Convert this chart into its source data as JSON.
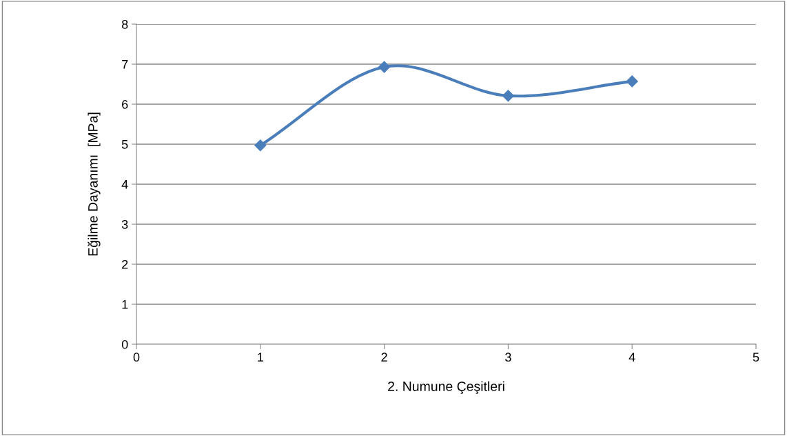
{
  "chart_data": {
    "type": "line",
    "xlabel": "2. Numune Çeşitleri",
    "ylabel": "Eğilme Dayanımı  [MPa]",
    "x": [
      1,
      2,
      3,
      4
    ],
    "series": [
      {
        "color": "#4a7ebb",
        "values": [
          4.97,
          6.93,
          6.21,
          6.57
        ]
      }
    ],
    "xlim": [
      0,
      5
    ],
    "xticks": [
      0,
      1,
      2,
      3,
      4,
      5
    ],
    "ylim": [
      0,
      8
    ],
    "yticks": [
      0,
      1,
      2,
      3,
      4,
      5,
      6,
      7,
      8
    ],
    "grid": "y",
    "marker": "diamond",
    "line_style": "solid",
    "legend": false
  }
}
